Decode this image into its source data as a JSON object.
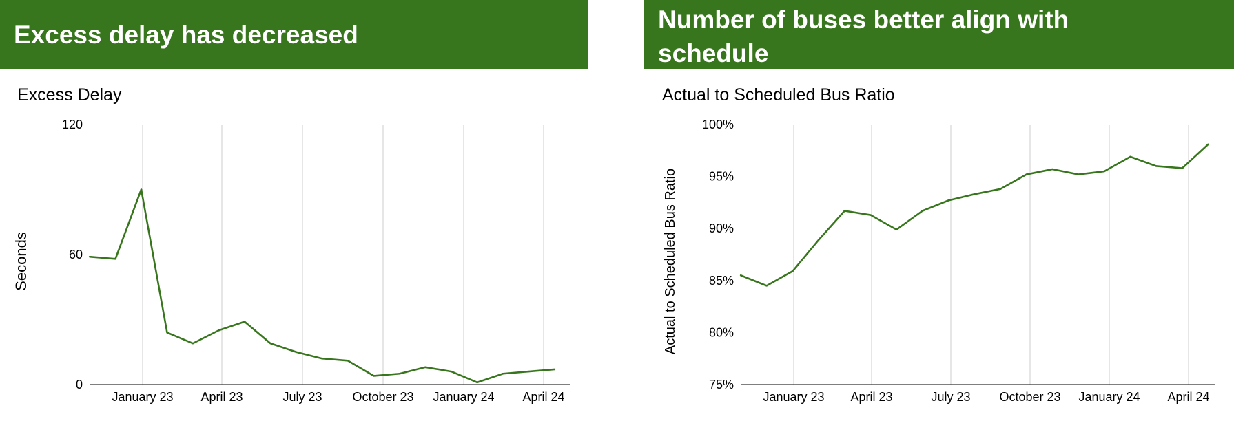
{
  "banners": {
    "left": "Excess delay has decreased",
    "right": "Number of buses better align with schedule"
  },
  "colors": {
    "banner": "#38761d",
    "line": "#38761d",
    "grid": "#cccccc"
  },
  "chart_data": [
    {
      "type": "line",
      "title": "Excess Delay",
      "xlabel": "",
      "ylabel": "Seconds",
      "ylim": [
        0,
        120
      ],
      "yticks": [
        "0",
        "60",
        "120"
      ],
      "xtick_labels": [
        "January 23",
        "April 23",
        "July 23",
        "October 23",
        "January 24",
        "April 24"
      ],
      "grid": "vertical",
      "series": [
        {
          "values": [
            59,
            58,
            90,
            24,
            19,
            25,
            29,
            19,
            15,
            12,
            11,
            4,
            5,
            8,
            6,
            1,
            5,
            6,
            7
          ]
        }
      ]
    },
    {
      "type": "line",
      "title": "Actual to Scheduled Bus Ratio",
      "xlabel": "",
      "ylabel": "Actual to Scheduled Bus Ratio",
      "ylim": [
        75,
        100
      ],
      "yticks": [
        "75%",
        "80%",
        "85%",
        "90%",
        "95%",
        "100%"
      ],
      "xtick_labels": [
        "January 23",
        "April 23",
        "July 23",
        "October 23",
        "January 24",
        "April 24"
      ],
      "grid": "vertical",
      "series": [
        {
          "values": [
            85.5,
            84.5,
            85.9,
            88.9,
            91.7,
            91.3,
            89.9,
            91.7,
            92.7,
            93.3,
            93.8,
            95.2,
            95.7,
            95.2,
            95.5,
            96.9,
            96.0,
            95.8,
            98.1
          ]
        }
      ]
    }
  ]
}
